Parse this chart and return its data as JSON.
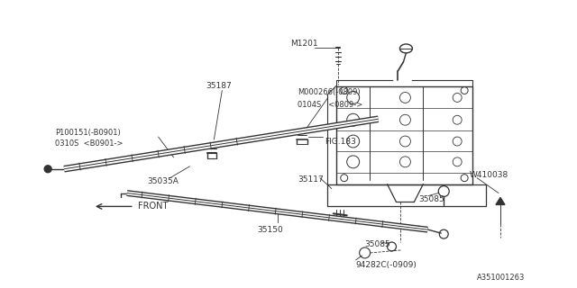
{
  "bg_color": "#ffffff",
  "line_color": "#333333",
  "fig_width": 6.4,
  "fig_height": 3.2,
  "dpi": 100,
  "label_texts": {
    "M1201": "M1201",
    "35187": "35187",
    "M000266": "M000266(-0809)",
    "0104S": "0104S   <0809->",
    "FIG183": "FIG.183",
    "P100151": "P100151(-B0901)",
    "0310S": "0310S  <B0901->",
    "35035A": "35035A",
    "35117": "35117",
    "35085_top": "35085",
    "35150": "35150",
    "35085_bot": "35085",
    "94282C": "94282C(-0909)",
    "W410038": "W410038",
    "ref_num": "A351001263"
  }
}
